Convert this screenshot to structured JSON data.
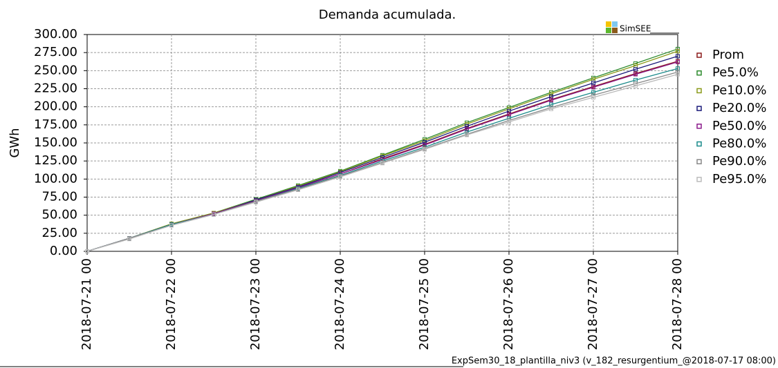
{
  "chart_data": {
    "type": "line",
    "title": "Demanda acumulada.",
    "ylabel": "GWh",
    "logo": "SimSEE",
    "footer": "ExpSem30_18_plantilla_niv3 (v_182_resurgentium_@2018-07-17 08:00)",
    "x": [
      "2018-07-21 00",
      "2018-07-21 12",
      "2018-07-22 00",
      "2018-07-22 12",
      "2018-07-23 00",
      "2018-07-23 12",
      "2018-07-24 00",
      "2018-07-24 12",
      "2018-07-25 00",
      "2018-07-25 12",
      "2018-07-26 00",
      "2018-07-26 12",
      "2018-07-27 00",
      "2018-07-27 12",
      "2018-07-28 00"
    ],
    "xlim": [
      "2018-07-21 00",
      "2018-07-28 00"
    ],
    "xticks": [
      "2018-07-21 00",
      "2018-07-22 00",
      "2018-07-23 00",
      "2018-07-24 00",
      "2018-07-25 00",
      "2018-07-26 00",
      "2018-07-27 00",
      "2018-07-28 00"
    ],
    "ylim": [
      0,
      300
    ],
    "yticks": [
      {
        "value": 0,
        "label": "0.00"
      },
      {
        "value": 25,
        "label": "25.00"
      },
      {
        "value": 50,
        "label": "50.00"
      },
      {
        "value": 75,
        "label": "75.00"
      },
      {
        "value": 100,
        "label": "100.00"
      },
      {
        "value": 125,
        "label": "125.00"
      },
      {
        "value": 150,
        "label": "150.00"
      },
      {
        "value": 175,
        "label": "175.00"
      },
      {
        "value": 200,
        "label": "200.00"
      },
      {
        "value": 225,
        "label": "225.00"
      },
      {
        "value": 250,
        "label": "250.00"
      },
      {
        "value": 275,
        "label": "275.00"
      },
      {
        "value": 300,
        "label": "300.00"
      }
    ],
    "grid": true,
    "legend": "right",
    "series": [
      {
        "name": "Prom",
        "color": "#8b1a1a",
        "values": [
          0,
          18,
          37,
          52,
          70,
          88,
          107,
          128,
          148,
          170,
          190,
          210,
          228,
          246,
          263
        ]
      },
      {
        "name": "Pe5.0%",
        "color": "#2e8b2e",
        "values": [
          0,
          18,
          38,
          53,
          72,
          91,
          111,
          133,
          155,
          178,
          199,
          220,
          240,
          260,
          280
        ]
      },
      {
        "name": "Pe10.0%",
        "color": "#8a9a1a",
        "values": [
          0,
          18,
          38,
          53,
          71,
          90,
          110,
          132,
          153,
          176,
          197,
          218,
          238,
          257,
          277
        ]
      },
      {
        "name": "Pe20.0%",
        "color": "#1a1a7a",
        "values": [
          0,
          18,
          37,
          52,
          71,
          89,
          109,
          130,
          151,
          173,
          194,
          214,
          233,
          252,
          270
        ]
      },
      {
        "name": "Pe50.0%",
        "color": "#8b1a8b",
        "values": [
          0,
          18,
          37,
          52,
          70,
          88,
          107,
          127,
          147,
          169,
          189,
          209,
          227,
          245,
          262
        ]
      },
      {
        "name": "Pe80.0%",
        "color": "#1a8b8b",
        "values": [
          0,
          18,
          37,
          51,
          69,
          87,
          105,
          125,
          144,
          165,
          184,
          203,
          220,
          237,
          253
        ]
      },
      {
        "name": "Pe90.0%",
        "color": "#888888",
        "values": [
          0,
          18,
          36,
          51,
          69,
          86,
          104,
          123,
          142,
          162,
          181,
          199,
          216,
          232,
          248
        ]
      },
      {
        "name": "Pe95.0%",
        "color": "#bbbbbb",
        "values": [
          0,
          17,
          36,
          51,
          68,
          85,
          103,
          122,
          141,
          161,
          179,
          197,
          213,
          229,
          245
        ]
      }
    ]
  }
}
